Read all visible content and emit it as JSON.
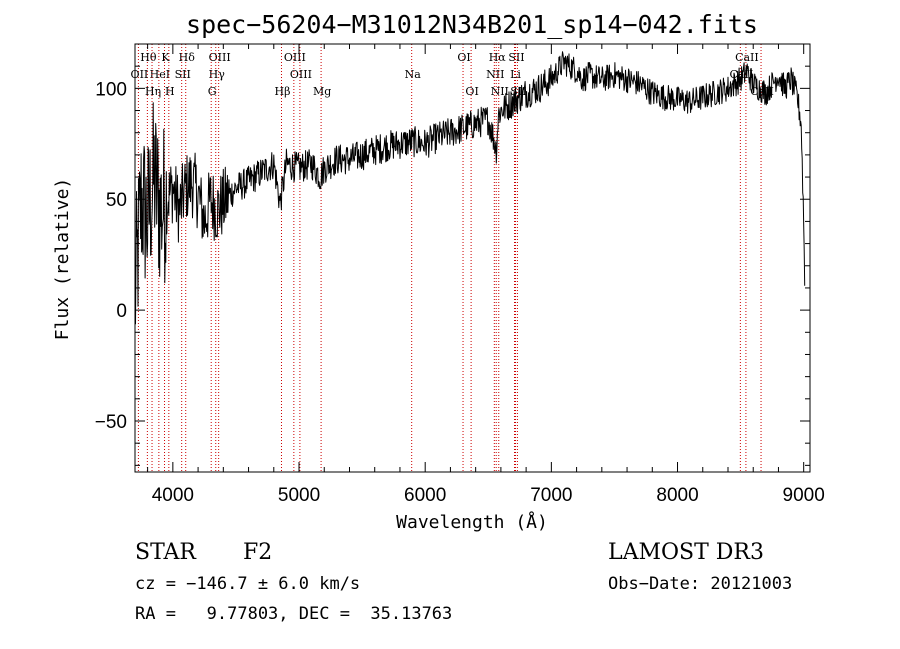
{
  "chart_data": {
    "type": "line",
    "title": "spec−56204−M31012N34B201_sp14−042.fits",
    "xlabel": "Wavelength (Å)",
    "ylabel": "Flux (relative)",
    "xlim": [
      3700,
      9050
    ],
    "ylim": [
      -73,
      120
    ],
    "x_ticks": [
      4000,
      5000,
      6000,
      7000,
      8000,
      9000
    ],
    "x_tick_labels": [
      "4000",
      "5000",
      "6000",
      "7000",
      "8000",
      "9000"
    ],
    "y_ticks": [
      -50,
      0,
      50,
      100
    ],
    "y_tick_labels": [
      "−50",
      "0",
      "50",
      "100"
    ],
    "series": [
      {
        "name": "flux",
        "x": [
          3700,
          3750,
          3800,
          3850,
          3900,
          3950,
          4000,
          4050,
          4100,
          4150,
          4200,
          4250,
          4300,
          4350,
          4400,
          4450,
          4500,
          4600,
          4700,
          4800,
          4850,
          4900,
          5000,
          5100,
          5170,
          5200,
          5300,
          5400,
          5500,
          5600,
          5700,
          5800,
          5900,
          6000,
          6100,
          6200,
          6300,
          6400,
          6500,
          6550,
          6563,
          6580,
          6600,
          6650,
          6700,
          6750,
          6800,
          6900,
          7000,
          7050,
          7100,
          7150,
          7200,
          7250,
          7300,
          7400,
          7500,
          7600,
          7700,
          7800,
          7900,
          8000,
          8100,
          8200,
          8300,
          8400,
          8500,
          8550,
          8600,
          8650,
          8700,
          8800,
          8850,
          8900,
          8950,
          8980,
          9000,
          9010
        ],
        "y": [
          5,
          50,
          40,
          60,
          45,
          50,
          55,
          45,
          55,
          58,
          52,
          40,
          50,
          45,
          48,
          52,
          55,
          58,
          62,
          66,
          48,
          66,
          64,
          66,
          60,
          64,
          68,
          68,
          70,
          72,
          74,
          75,
          76,
          75,
          78,
          80,
          82,
          84,
          86,
          76,
          72,
          88,
          90,
          92,
          94,
          96,
          98,
          100,
          104,
          108,
          112,
          110,
          108,
          104,
          106,
          104,
          106,
          104,
          102,
          98,
          96,
          95,
          94,
          96,
          98,
          100,
          104,
          108,
          102,
          100,
          98,
          106,
          100,
          104,
          96,
          84,
          40,
          5
        ]
      }
    ],
    "spectral_lines": [
      {
        "name": "Hθ",
        "wavelength": 3798,
        "row": 1
      },
      {
        "name": "K",
        "wavelength": 3934,
        "row": 1
      },
      {
        "name": "Hδ",
        "wavelength": 4102,
        "row": 1
      },
      {
        "name": "OIII",
        "wavelength": 4363,
        "row": 1
      },
      {
        "name": "OIII",
        "wavelength": 4959,
        "row": 1
      },
      {
        "name": "OI",
        "wavelength": 6300,
        "row": 1
      },
      {
        "name": "Hα",
        "wavelength": 6563,
        "row": 1
      },
      {
        "name": "SII",
        "wavelength": 6716,
        "row": 1
      },
      {
        "name": "CaII",
        "wavelength": 8542,
        "row": 1
      },
      {
        "name": "OII",
        "wavelength": 3727,
        "row": 2
      },
      {
        "name": "HeI",
        "wavelength": 3889,
        "row": 2
      },
      {
        "name": "SII",
        "wavelength": 4070,
        "row": 2
      },
      {
        "name": "Hγ",
        "wavelength": 4340,
        "row": 2
      },
      {
        "name": "OIII",
        "wavelength": 5007,
        "row": 2
      },
      {
        "name": "Na",
        "wavelength": 5893,
        "row": 2
      },
      {
        "name": "NII",
        "wavelength": 6548,
        "row": 2
      },
      {
        "name": "Li",
        "wavelength": 6708,
        "row": 2
      },
      {
        "name": "CaII",
        "wavelength": 8498,
        "row": 2
      },
      {
        "name": "Hη",
        "wavelength": 3835,
        "row": 3
      },
      {
        "name": "H",
        "wavelength": 3968,
        "row": 3
      },
      {
        "name": "G",
        "wavelength": 4304,
        "row": 3
      },
      {
        "name": "Hβ",
        "wavelength": 4861,
        "row": 3
      },
      {
        "name": "Mg",
        "wavelength": 5175,
        "row": 3
      },
      {
        "name": "OI",
        "wavelength": 6364,
        "row": 3
      },
      {
        "name": "NII",
        "wavelength": 6583,
        "row": 3
      },
      {
        "name": "SII",
        "wavelength": 6731,
        "row": 3
      },
      {
        "name": "CaII",
        "wavelength": 8662,
        "row": 3
      }
    ]
  },
  "info": {
    "object_class": "STAR",
    "subclass": "F2",
    "survey": "LAMOST DR3",
    "cz": "cz = −146.7 ± 6.0 km/s",
    "obs_date": "Obs−Date: 20121003",
    "coords": "RA =   9.77803, DEC =  35.13763"
  },
  "colors": {
    "line_marker": "#cc0000",
    "spectrum": "#000000"
  }
}
